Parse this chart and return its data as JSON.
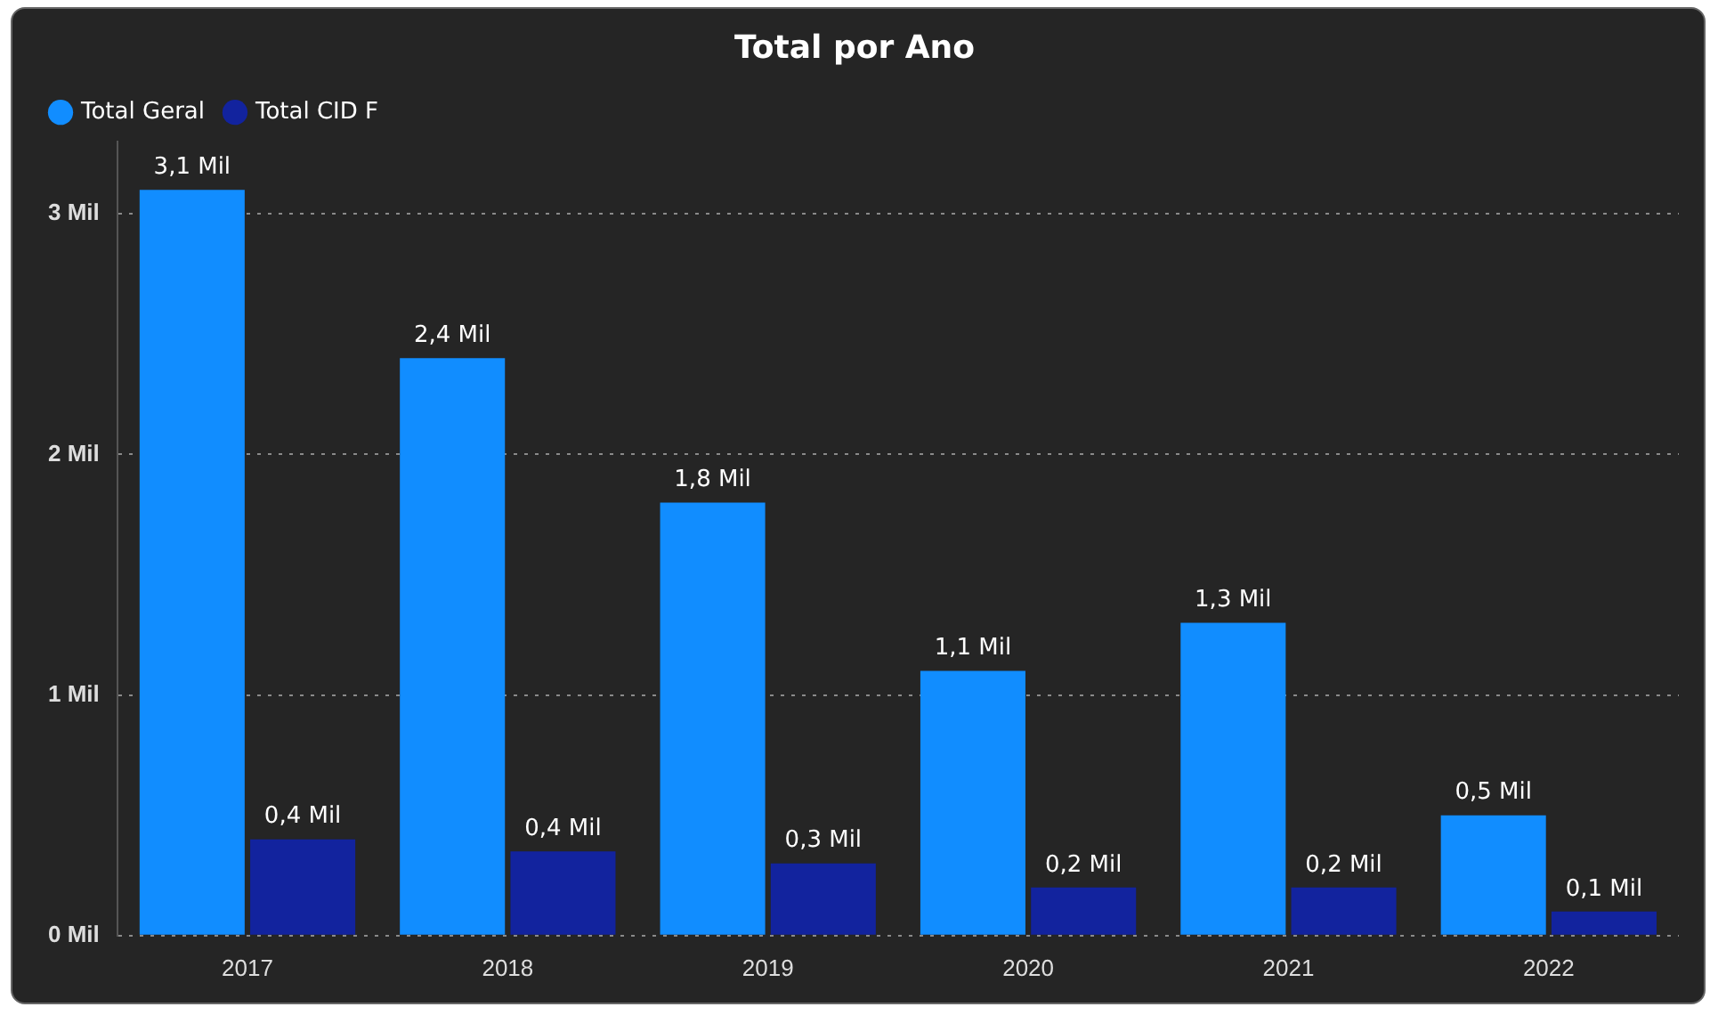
{
  "chart_data": {
    "type": "bar",
    "title": "Total por Ano",
    "categories": [
      "2017",
      "2018",
      "2019",
      "2020",
      "2021",
      "2022"
    ],
    "series": [
      {
        "name": "Total Geral",
        "color": "#118dff",
        "values": [
          3.1,
          2.4,
          1.8,
          1.1,
          1.3,
          0.5
        ],
        "value_labels": [
          "3,1 Mil",
          "2,4 Mil",
          "1,8 Mil",
          "1,1 Mil",
          "1,3 Mil",
          "0,5 Mil"
        ]
      },
      {
        "name": "Total CID F",
        "color": "#12239e",
        "values": [
          0.4,
          0.35,
          0.3,
          0.2,
          0.2,
          0.1
        ],
        "value_labels": [
          "0,4 Mil",
          "0,4 Mil",
          "0,3 Mil",
          "0,2 Mil",
          "0,2 Mil",
          "0,1 Mil"
        ]
      }
    ],
    "ylim": [
      0,
      3.3
    ],
    "yticks": [
      {
        "value": 0,
        "label": "0 Mil"
      },
      {
        "value": 1,
        "label": "1 Mil"
      },
      {
        "value": 2,
        "label": "2 Mil"
      },
      {
        "value": 3,
        "label": "3 Mil"
      }
    ],
    "grid": "y",
    "legend": "top left"
  }
}
